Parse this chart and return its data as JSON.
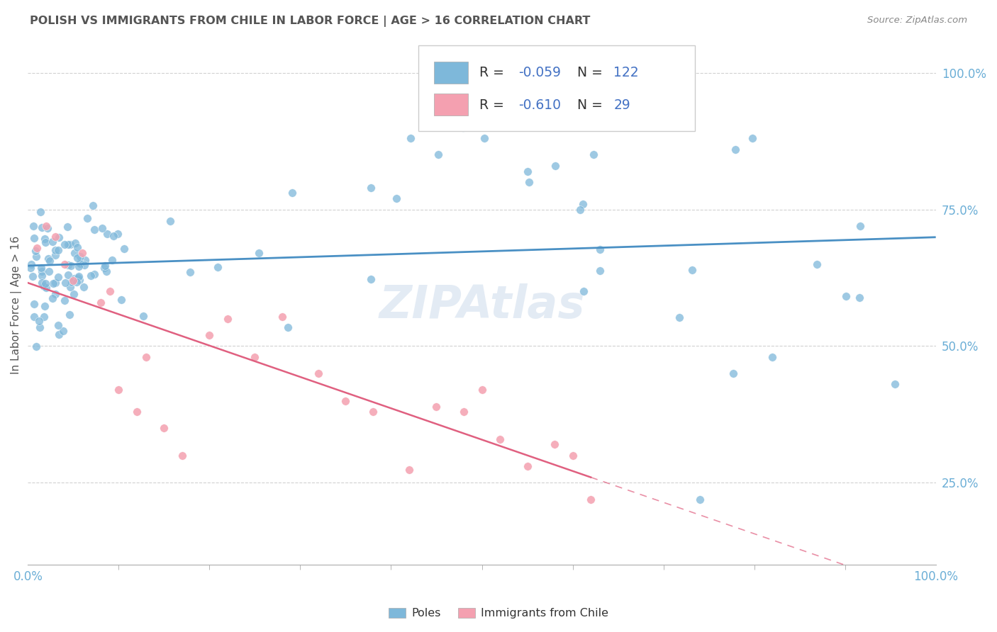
{
  "title": "POLISH VS IMMIGRANTS FROM CHILE IN LABOR FORCE | AGE > 16 CORRELATION CHART",
  "source": "Source: ZipAtlas.com",
  "ylabel": "In Labor Force | Age > 16",
  "watermark": "ZIPAtlas",
  "poles_color": "#7EB8DA",
  "poles_color_dark": "#4A90C4",
  "chile_color": "#F4A0B0",
  "chile_color_dark": "#E06080",
  "poles_R": -0.059,
  "poles_N": 122,
  "chile_R": -0.61,
  "chile_N": 29,
  "bg_color": "#ffffff",
  "grid_color": "#cccccc",
  "title_color": "#555555",
  "axis_color": "#6baed6",
  "legend_r_color": "#4472c4",
  "legend_n_color": "#4472c4"
}
